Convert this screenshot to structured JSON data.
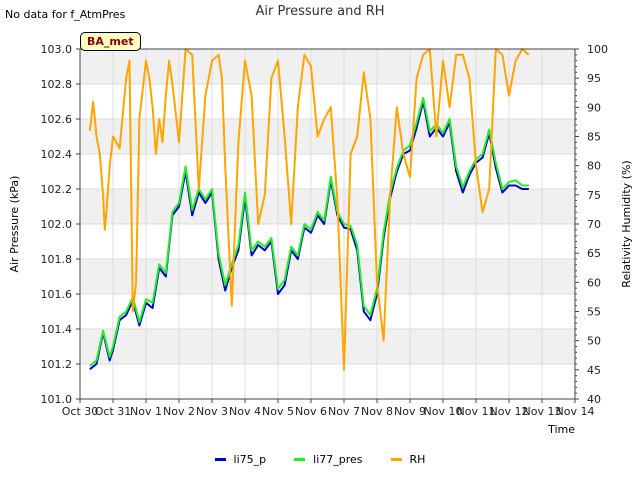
{
  "page": {
    "nodata_note": "No data for f_AtmPres",
    "badge": "BA_met"
  },
  "chart_data": {
    "type": "line",
    "title": "Air Pressure and RH",
    "xlabel": "Time",
    "ylabel_left": "Air Pressure (kPa)",
    "ylabel_right": "Relativity Humidity (%)",
    "x_ticks": [
      "Oct 30",
      "Oct 31",
      "Nov 1",
      "Nov 2",
      "Nov 3",
      "Nov 4",
      "Nov 5",
      "Nov 6",
      "Nov 7",
      "Nov 8",
      "Nov 9",
      "Nov 10",
      "Nov 11",
      "Nov 12",
      "Nov 13",
      "Nov 14"
    ],
    "x_range_days": [
      0,
      15
    ],
    "y_left_range": [
      101.0,
      103.0
    ],
    "y_left_ticks": [
      "101.0",
      "101.2",
      "101.4",
      "101.6",
      "101.8",
      "102.0",
      "102.2",
      "102.4",
      "102.6",
      "102.8",
      "103.0"
    ],
    "y_right_range": [
      40,
      100
    ],
    "y_right_ticks": [
      "40",
      "45",
      "50",
      "55",
      "60",
      "65",
      "70",
      "75",
      "80",
      "85",
      "90",
      "95",
      "100"
    ],
    "grid": true,
    "band_shading": "alternating gray bands",
    "legend_position": "bottom",
    "series": [
      {
        "name": "li75_p",
        "color": "#0000cc",
        "axis": "left",
        "x": [
          0.3,
          0.5,
          0.7,
          0.9,
          1.0,
          1.2,
          1.4,
          1.6,
          1.8,
          2.0,
          2.2,
          2.4,
          2.6,
          2.8,
          3.0,
          3.2,
          3.4,
          3.6,
          3.8,
          4.0,
          4.2,
          4.4,
          4.6,
          4.8,
          5.0,
          5.2,
          5.4,
          5.6,
          5.8,
          6.0,
          6.2,
          6.4,
          6.6,
          6.8,
          7.0,
          7.2,
          7.4,
          7.6,
          7.8,
          8.0,
          8.2,
          8.4,
          8.6,
          8.8,
          9.0,
          9.2,
          9.4,
          9.6,
          9.8,
          10.0,
          10.2,
          10.4,
          10.6,
          10.8,
          11.0,
          11.2,
          11.4,
          11.6,
          11.8,
          12.0,
          12.2,
          12.4,
          12.6,
          12.8,
          13.0,
          13.2,
          13.4,
          13.6
        ],
        "values": [
          101.17,
          101.2,
          101.38,
          101.22,
          101.28,
          101.45,
          101.48,
          101.56,
          101.42,
          101.55,
          101.52,
          101.75,
          101.7,
          102.05,
          102.1,
          102.3,
          102.05,
          102.18,
          102.12,
          102.18,
          101.8,
          101.62,
          101.75,
          101.85,
          102.15,
          101.82,
          101.88,
          101.85,
          101.9,
          101.6,
          101.65,
          101.85,
          101.8,
          101.98,
          101.95,
          102.05,
          102.0,
          102.25,
          102.05,
          101.98,
          101.97,
          101.85,
          101.5,
          101.45,
          101.6,
          101.92,
          102.15,
          102.3,
          102.4,
          102.42,
          102.55,
          102.7,
          102.5,
          102.55,
          102.5,
          102.58,
          102.3,
          102.18,
          102.28,
          102.35,
          102.38,
          102.52,
          102.32,
          102.18,
          102.22,
          102.22,
          102.2,
          102.2
        ]
      },
      {
        "name": "li77_pres",
        "color": "#22ee22",
        "axis": "left",
        "x": [
          0.3,
          0.5,
          0.7,
          0.9,
          1.0,
          1.2,
          1.4,
          1.6,
          1.8,
          2.0,
          2.2,
          2.4,
          2.6,
          2.8,
          3.0,
          3.2,
          3.4,
          3.6,
          3.8,
          4.0,
          4.2,
          4.4,
          4.6,
          4.8,
          5.0,
          5.2,
          5.4,
          5.6,
          5.8,
          6.0,
          6.2,
          6.4,
          6.6,
          6.8,
          7.0,
          7.2,
          7.4,
          7.6,
          7.8,
          8.0,
          8.2,
          8.4,
          8.6,
          8.8,
          9.0,
          9.2,
          9.4,
          9.6,
          9.8,
          10.0,
          10.2,
          10.4,
          10.6,
          10.8,
          11.0,
          11.2,
          11.4,
          11.6,
          11.8,
          12.0,
          12.2,
          12.4,
          12.6,
          12.8,
          13.0,
          13.2,
          13.4,
          13.6
        ],
        "values": [
          101.19,
          101.22,
          101.39,
          101.24,
          101.3,
          101.47,
          101.5,
          101.58,
          101.44,
          101.57,
          101.55,
          101.77,
          101.72,
          102.07,
          102.12,
          102.33,
          102.08,
          102.2,
          102.14,
          102.2,
          101.83,
          101.65,
          101.77,
          101.88,
          102.18,
          101.85,
          101.9,
          101.87,
          101.92,
          101.63,
          101.68,
          101.87,
          101.82,
          102.0,
          101.97,
          102.07,
          102.02,
          102.27,
          102.07,
          102.0,
          101.99,
          101.88,
          101.53,
          101.48,
          101.63,
          101.95,
          102.18,
          102.32,
          102.42,
          102.45,
          102.58,
          102.72,
          102.53,
          102.57,
          102.52,
          102.6,
          102.33,
          102.21,
          102.3,
          102.37,
          102.4,
          102.54,
          102.35,
          102.2,
          102.24,
          102.25,
          102.22,
          102.22
        ]
      },
      {
        "name": "RH",
        "color": "#ffa500",
        "axis": "right",
        "x": [
          0.3,
          0.4,
          0.5,
          0.6,
          0.7,
          0.75,
          0.8,
          0.9,
          1.0,
          1.2,
          1.4,
          1.5,
          1.6,
          1.7,
          1.8,
          1.9,
          2.0,
          2.1,
          2.2,
          2.3,
          2.4,
          2.5,
          2.6,
          2.7,
          2.8,
          3.0,
          3.2,
          3.4,
          3.6,
          3.8,
          4.0,
          4.2,
          4.3,
          4.4,
          4.6,
          4.8,
          5.0,
          5.2,
          5.4,
          5.6,
          5.8,
          6.0,
          6.2,
          6.4,
          6.6,
          6.8,
          7.0,
          7.2,
          7.4,
          7.6,
          7.8,
          8.0,
          8.2,
          8.4,
          8.6,
          8.8,
          9.0,
          9.2,
          9.4,
          9.6,
          9.8,
          10.0,
          10.2,
          10.4,
          10.6,
          10.8,
          11.0,
          11.2,
          11.4,
          11.6,
          11.8,
          12.0,
          12.2,
          12.4,
          12.6,
          12.8,
          13.0,
          13.2,
          13.4,
          13.6
        ],
        "values": [
          86,
          91,
          85,
          82,
          75,
          69,
          72,
          80,
          85,
          83,
          95,
          98,
          55,
          60,
          88,
          93,
          98,
          95,
          90,
          82,
          88,
          84,
          92,
          98,
          94,
          84,
          100,
          99,
          76,
          92,
          98,
          99,
          95,
          80,
          56,
          84,
          98,
          92,
          70,
          75,
          95,
          98,
          85,
          70,
          90,
          99,
          97,
          85,
          88,
          90,
          74,
          45,
          82,
          85,
          96,
          88,
          60,
          50,
          75,
          90,
          82,
          78,
          95,
          99,
          100,
          85,
          98,
          90,
          99,
          99,
          95,
          80,
          72,
          76,
          100,
          99,
          92,
          98,
          100,
          99
        ]
      }
    ]
  }
}
